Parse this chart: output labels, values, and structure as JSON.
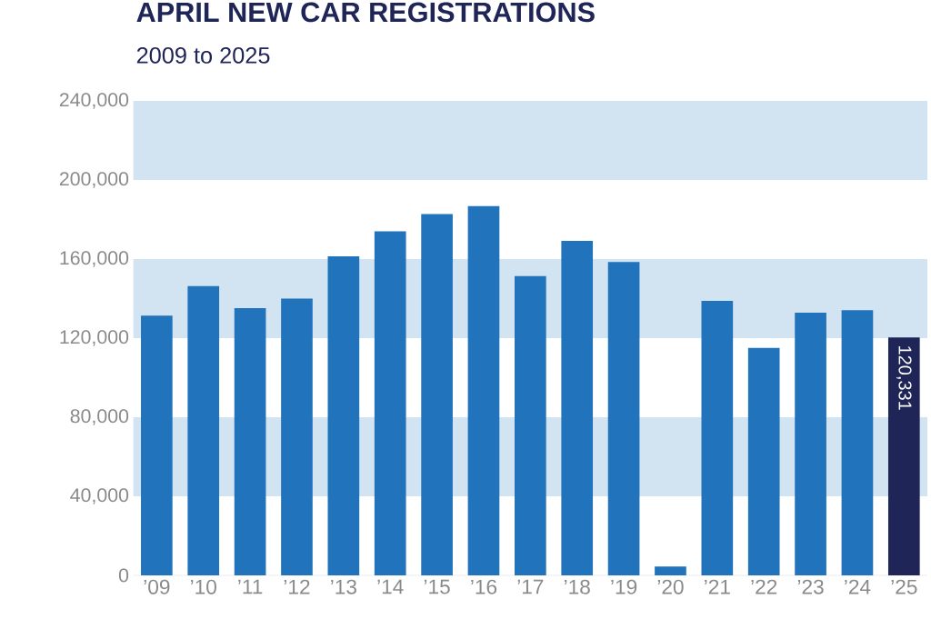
{
  "chart_data": {
    "type": "bar",
    "title": "APRIL NEW CAR REGISTRATIONS",
    "subtitle": "2009 to 2025",
    "categories": [
      "’09",
      "’10",
      "’11",
      "’12",
      "’13",
      "’14",
      "’15",
      "’16",
      "’17",
      "’18",
      "’19",
      "’20",
      "’21",
      "’22",
      "’23",
      "’24",
      "’25"
    ],
    "values": [
      131400,
      146300,
      135200,
      140000,
      161400,
      174000,
      182800,
      186800,
      151400,
      169200,
      158500,
      4500,
      138900,
      115000,
      132900,
      134100,
      120331
    ],
    "colors": [
      "#2173bb",
      "#2173bb",
      "#2173bb",
      "#2173bb",
      "#2173bb",
      "#2173bb",
      "#2173bb",
      "#2173bb",
      "#2173bb",
      "#2173bb",
      "#2173bb",
      "#2173bb",
      "#2173bb",
      "#2173bb",
      "#2173bb",
      "#2173bb",
      "#1f2557"
    ],
    "value_labels": [
      null,
      null,
      null,
      null,
      null,
      null,
      null,
      null,
      null,
      null,
      null,
      null,
      null,
      null,
      null,
      null,
      "120,331"
    ],
    "ylim": [
      0,
      240000
    ],
    "yticks": [
      {
        "value": 0,
        "label": "0"
      },
      {
        "value": 40000,
        "label": "40,000"
      },
      {
        "value": 80000,
        "label": "80,000"
      },
      {
        "value": 120000,
        "label": "120,000"
      },
      {
        "value": 160000,
        "label": "160,000"
      },
      {
        "value": 200000,
        "label": "200,000"
      },
      {
        "value": 240000,
        "label": "240,000"
      }
    ],
    "bands": [
      {
        "axis": "y",
        "from": 40000,
        "to": 80000,
        "color": "#d2e3f1"
      },
      {
        "axis": "y",
        "from": 120000,
        "to": 160000,
        "color": "#d2e3f1"
      },
      {
        "axis": "y",
        "from": 200000,
        "to": 240000,
        "color": "#d2e3f1"
      }
    ]
  }
}
